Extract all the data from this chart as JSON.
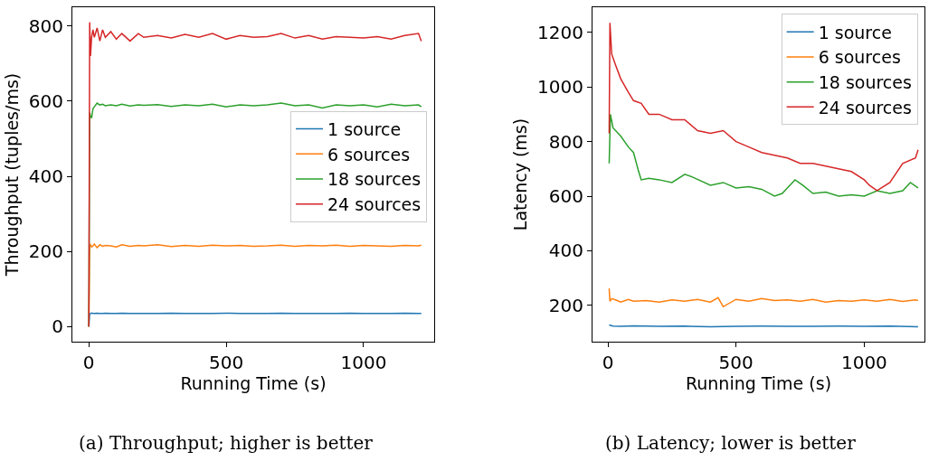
{
  "chart_data": [
    {
      "type": "line",
      "xlabel": "Running Time (s)",
      "ylabel": "Throughput (tuples/ms)",
      "subtitle": "(a) Throughput; higher is better",
      "xlim": [
        -60,
        1257
      ],
      "ylim": [
        -40,
        850
      ],
      "xticks": [
        0,
        500,
        1000
      ],
      "yticks": [
        0,
        200,
        400,
        600,
        800
      ],
      "legend": "right",
      "marker": "none",
      "line_style": "solid",
      "series": [
        {
          "name": "1 source",
          "color": "#1f77b4",
          "x": [
            0,
            3,
            6,
            10,
            15,
            20,
            30,
            40,
            50,
            60,
            80,
            100,
            120,
            150,
            180,
            200,
            250,
            300,
            350,
            400,
            450,
            500,
            550,
            600,
            650,
            700,
            750,
            800,
            850,
            900,
            950,
            1000,
            1050,
            1100,
            1150,
            1200,
            1210
          ],
          "values": [
            0,
            33,
            35,
            36,
            35,
            35,
            36,
            35,
            35,
            36,
            35,
            35,
            36,
            35,
            35,
            35,
            35,
            36,
            35,
            35,
            35,
            36,
            35,
            35,
            35,
            36,
            35,
            35,
            35,
            35,
            36,
            35,
            35,
            35,
            36,
            35,
            35
          ]
        },
        {
          "name": "6 sources",
          "color": "#ff7f0e",
          "x": [
            0,
            3,
            6,
            10,
            15,
            20,
            30,
            40,
            50,
            60,
            80,
            100,
            120,
            150,
            180,
            200,
            250,
            300,
            350,
            400,
            450,
            500,
            550,
            600,
            650,
            700,
            750,
            800,
            850,
            900,
            950,
            1000,
            1050,
            1100,
            1150,
            1200,
            1210
          ],
          "values": [
            0,
            215,
            218,
            212,
            215,
            220,
            210,
            218,
            214,
            216,
            215,
            212,
            218,
            214,
            216,
            215,
            218,
            213,
            216,
            214,
            217,
            215,
            216,
            214,
            215,
            217,
            214,
            216,
            215,
            217,
            214,
            216,
            215,
            214,
            216,
            215,
            217
          ]
        },
        {
          "name": "18 sources",
          "color": "#2ca02c",
          "x": [
            0,
            3,
            6,
            10,
            15,
            20,
            30,
            40,
            50,
            60,
            80,
            100,
            120,
            150,
            180,
            200,
            250,
            300,
            350,
            400,
            450,
            500,
            550,
            600,
            650,
            700,
            750,
            800,
            850,
            900,
            950,
            1000,
            1050,
            1100,
            1150,
            1200,
            1210
          ],
          "values": [
            0,
            570,
            560,
            555,
            580,
            585,
            595,
            590,
            592,
            588,
            590,
            588,
            592,
            587,
            590,
            589,
            591,
            586,
            590,
            588,
            592,
            585,
            590,
            588,
            590,
            595,
            588,
            590,
            582,
            590,
            588,
            590,
            585,
            592,
            588,
            590,
            585
          ]
        },
        {
          "name": "24 sources",
          "color": "#d62728",
          "x": [
            0,
            3,
            6,
            10,
            15,
            20,
            30,
            40,
            50,
            60,
            80,
            100,
            120,
            150,
            180,
            200,
            250,
            300,
            350,
            400,
            450,
            500,
            550,
            600,
            650,
            700,
            750,
            800,
            850,
            900,
            950,
            1000,
            1050,
            1100,
            1150,
            1200,
            1210
          ],
          "values": [
            0,
            810,
            720,
            770,
            790,
            770,
            795,
            760,
            790,
            770,
            785,
            765,
            780,
            760,
            780,
            770,
            775,
            768,
            778,
            770,
            780,
            765,
            775,
            770,
            772,
            780,
            768,
            775,
            765,
            772,
            770,
            768,
            772,
            765,
            775,
            780,
            760
          ]
        }
      ]
    },
    {
      "type": "line",
      "xlabel": "Running Time (s)",
      "ylabel": "Latency (ms)",
      "subtitle": "(b) Latency; lower is better",
      "xlim": [
        -60,
        1235
      ],
      "ylim": [
        67,
        1292
      ],
      "xticks": [
        0,
        500,
        1000
      ],
      "yticks": [
        200,
        400,
        600,
        800,
        1000,
        1200
      ],
      "legend": "top right",
      "marker": "none",
      "line_style": "solid",
      "series": [
        {
          "name": "1 source",
          "color": "#1f77b4",
          "x": [
            5,
            20,
            50,
            100,
            200,
            300,
            400,
            500,
            600,
            700,
            800,
            900,
            1000,
            1100,
            1210
          ],
          "values": [
            128,
            124,
            123,
            125,
            123,
            124,
            122,
            123,
            124,
            123,
            123,
            124,
            123,
            124,
            122
          ]
        },
        {
          "name": "6 sources",
          "color": "#ff7f0e",
          "x": [
            5,
            8,
            15,
            30,
            50,
            80,
            100,
            150,
            200,
            250,
            300,
            350,
            400,
            430,
            450,
            500,
            550,
            600,
            650,
            700,
            750,
            800,
            850,
            900,
            950,
            1000,
            1050,
            1100,
            1150,
            1200,
            1210
          ],
          "values": [
            262,
            215,
            225,
            220,
            212,
            222,
            215,
            218,
            212,
            220,
            215,
            222,
            212,
            228,
            195,
            222,
            215,
            225,
            218,
            220,
            215,
            222,
            212,
            218,
            215,
            220,
            215,
            222,
            214,
            220,
            218
          ]
        },
        {
          "name": "18 sources",
          "color": "#2ca02c",
          "x": [
            5,
            10,
            20,
            50,
            80,
            100,
            120,
            130,
            160,
            200,
            250,
            300,
            330,
            400,
            450,
            500,
            550,
            600,
            650,
            680,
            700,
            730,
            760,
            800,
            850,
            900,
            950,
            1000,
            1050,
            1100,
            1150,
            1180,
            1210
          ],
          "values": [
            720,
            900,
            850,
            820,
            780,
            760,
            690,
            660,
            665,
            660,
            650,
            680,
            670,
            640,
            650,
            630,
            635,
            625,
            600,
            610,
            630,
            660,
            640,
            610,
            615,
            600,
            605,
            600,
            620,
            610,
            620,
            650,
            630
          ]
        },
        {
          "name": "24 sources",
          "color": "#d62728",
          "x": [
            5,
            8,
            15,
            30,
            50,
            80,
            100,
            130,
            160,
            200,
            250,
            300,
            350,
            400,
            450,
            500,
            550,
            600,
            650,
            700,
            750,
            800,
            850,
            900,
            950,
            1000,
            1020,
            1050,
            1100,
            1150,
            1200,
            1210
          ],
          "values": [
            830,
            1235,
            1120,
            1080,
            1030,
            980,
            950,
            940,
            900,
            900,
            880,
            880,
            840,
            830,
            840,
            800,
            780,
            760,
            750,
            740,
            720,
            720,
            710,
            700,
            690,
            660,
            640,
            620,
            650,
            720,
            740,
            770
          ]
        }
      ]
    }
  ]
}
